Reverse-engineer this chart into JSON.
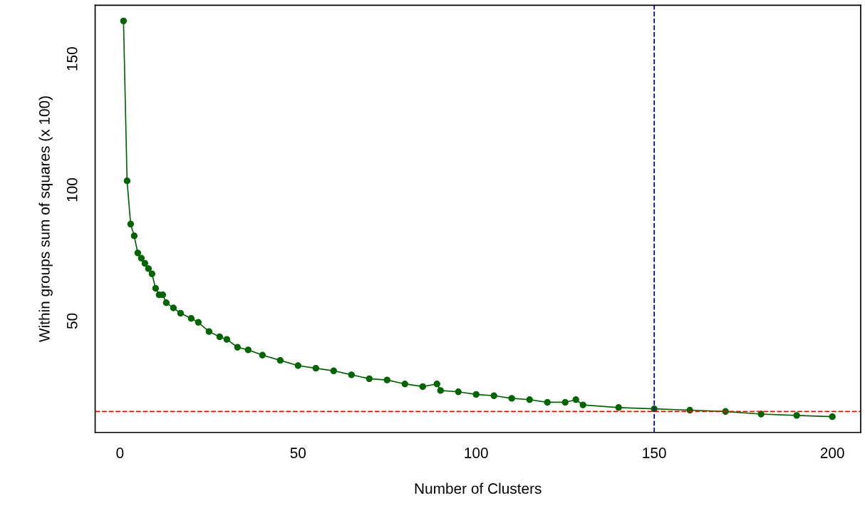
{
  "chart_data": {
    "type": "line",
    "xlabel": "Number of Clusters",
    "ylabel": "Within groups sum of squares (x 100)",
    "x": [
      1,
      2,
      3,
      4,
      5,
      6,
      7,
      8,
      9,
      10,
      11,
      12,
      13,
      15,
      17,
      20,
      22,
      25,
      28,
      30,
      33,
      36,
      40,
      45,
      50,
      55,
      60,
      65,
      70,
      75,
      80,
      85,
      89,
      90,
      95,
      100,
      105,
      110,
      115,
      120,
      125,
      128,
      130,
      140,
      150,
      160,
      170,
      180,
      190,
      200
    ],
    "series": [
      {
        "color": "#006400",
        "values": [
          164.5,
          103.5,
          87,
          82.5,
          76,
          74,
          72,
          70,
          68,
          62.5,
          60,
          60,
          57,
          55,
          53,
          51,
          49.5,
          46,
          44,
          43,
          40,
          39,
          37,
          35,
          33,
          32,
          31,
          29.5,
          28,
          27.5,
          26,
          25,
          26,
          23.5,
          23,
          22,
          21.5,
          20.5,
          20,
          19,
          19,
          20,
          18,
          17,
          16.5,
          16,
          15.5,
          14.5,
          14,
          13.5
        ]
      }
    ],
    "marker": "circle",
    "line_style": "solid",
    "grid": false,
    "xlim": [
      -6.96,
      207.96
    ],
    "ylim": [
      7.5,
      170.5
    ],
    "xticks": [
      0,
      50,
      100,
      150,
      200
    ],
    "yticks": [
      50,
      100,
      150
    ],
    "ref_lines": [
      {
        "axis": "x",
        "value": 150,
        "color": "#0000cd",
        "line_style": "dashed"
      },
      {
        "axis": "y",
        "value": 15.5,
        "color": "#ff0000",
        "line_style": "dashed"
      }
    ]
  }
}
